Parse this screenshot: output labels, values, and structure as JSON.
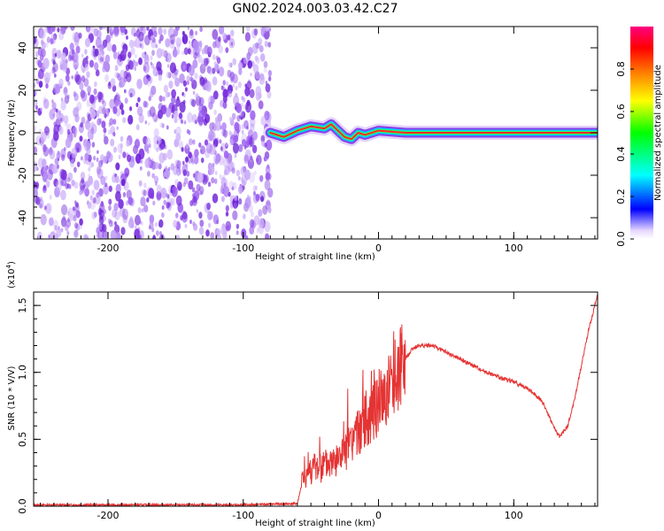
{
  "title": "GN02.2024.003.03.42.C27",
  "colors": {
    "signal": "#e53333",
    "noise": "#7b2fe0",
    "axis": "#000000"
  },
  "chart_data": [
    {
      "type": "heatmap",
      "xlabel": "Height of straight line (km)",
      "ylabel": "Frequency (Hz)",
      "xlim": [
        -255,
        162
      ],
      "ylim": [
        -50,
        50
      ],
      "xticks": [
        "-200",
        "-100",
        "0",
        "100"
      ],
      "xtick_values": [
        -200,
        -100,
        0,
        100
      ],
      "yticks": [
        "-40",
        "-20",
        "0",
        "20",
        "40"
      ],
      "ytick_values": [
        -40,
        -20,
        0,
        20,
        40
      ],
      "noise_region": [
        -255,
        -80
      ],
      "signal_track": {
        "x": [
          -80,
          -70,
          -60,
          -50,
          -40,
          -35,
          -30,
          -25,
          -20,
          -15,
          -10,
          0,
          20,
          50,
          80,
          110,
          140,
          162
        ],
        "y": [
          0,
          -2,
          1,
          3,
          2,
          4,
          1,
          -2,
          -3,
          0,
          -1,
          1,
          0,
          0,
          0,
          0,
          0,
          0
        ]
      },
      "colorbar": {
        "label": "Normalized spectral amplitude",
        "range": [
          0,
          1
        ],
        "ticks": [
          "0.0",
          "0.2",
          "0.4",
          "0.6",
          "0.8"
        ],
        "tick_values": [
          0.0,
          0.2,
          0.4,
          0.6,
          0.8
        ],
        "colors": [
          "#ffffff",
          "#0000ff",
          "#00ffff",
          "#00ff00",
          "#ffff00",
          "#ff8000",
          "#ff0000",
          "#ff0080"
        ]
      }
    },
    {
      "type": "line",
      "xlabel": "Height of straight line (km)",
      "ylabel": "SNR (10 * V/V)",
      "scale_label": "(x10",
      "scale_exp": "4",
      "xlim": [
        -255,
        162
      ],
      "ylim": [
        0,
        1.6
      ],
      "xticks": [
        "-200",
        "-100",
        "0",
        "100"
      ],
      "xtick_values": [
        -200,
        -100,
        0,
        100
      ],
      "yticks": [
        "0.0",
        "0.5",
        "1.0",
        "1.5"
      ],
      "ytick_values": [
        0.0,
        0.5,
        1.0,
        1.5
      ],
      "series": [
        {
          "x": [
            -255,
            -200,
            -150,
            -100,
            -60,
            -56,
            -50,
            -40,
            -30,
            -20,
            -10,
            0,
            10,
            20,
            25,
            30,
            40,
            50,
            60,
            70,
            80,
            90,
            100,
            110,
            120,
            125,
            130,
            134,
            140,
            145,
            150,
            155,
            162
          ],
          "y": [
            0.01,
            0.01,
            0.01,
            0.01,
            0.02,
            0.2,
            0.28,
            0.3,
            0.35,
            0.45,
            0.65,
            0.75,
            0.92,
            1.1,
            1.18,
            1.2,
            1.2,
            1.15,
            1.1,
            1.05,
            1.0,
            0.96,
            0.93,
            0.88,
            0.8,
            0.7,
            0.58,
            0.52,
            0.6,
            0.8,
            1.05,
            1.3,
            1.58
          ]
        }
      ]
    }
  ]
}
